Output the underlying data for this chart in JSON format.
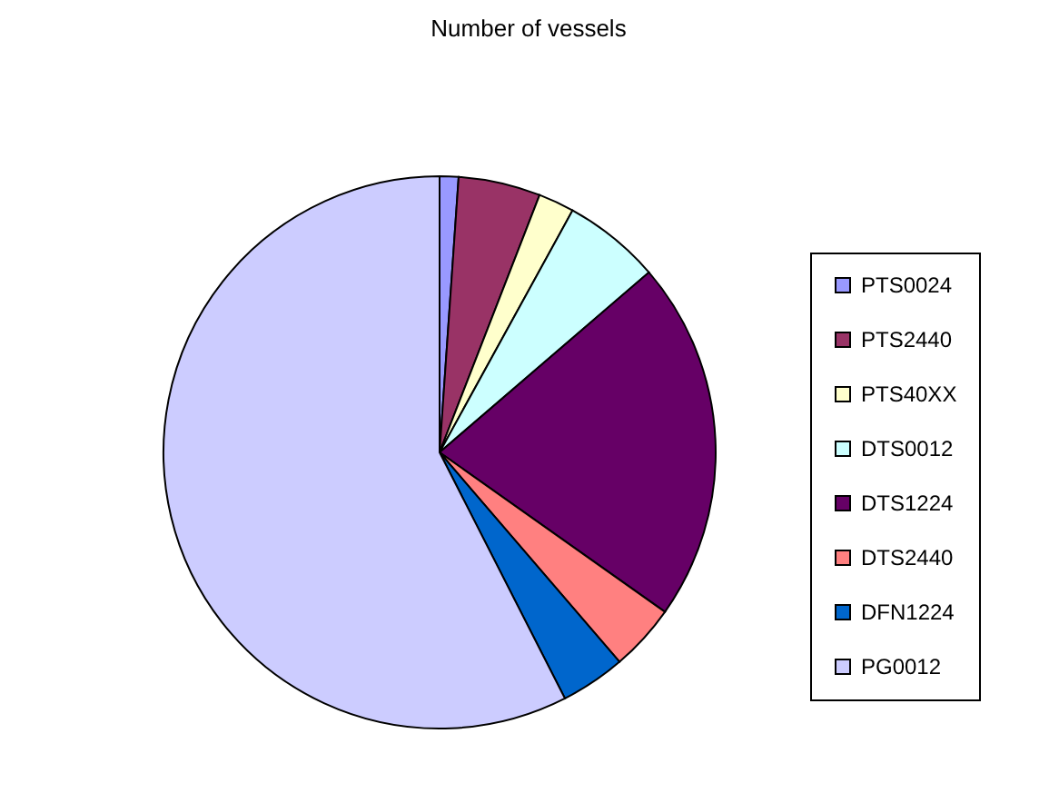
{
  "chart_data": {
    "type": "pie",
    "title": "Number of vessels",
    "categories": [
      "PTS0024",
      "PTS2440",
      "PTS40XX",
      "DTS0012",
      "DTS1224",
      "DTS2440",
      "DFN1224",
      "PG0012"
    ],
    "values": [
      1.1,
      4.8,
      2.1,
      5.7,
      21.1,
      3.9,
      3.8,
      57.5
    ],
    "colors": [
      "#9999ff",
      "#993366",
      "#ffffcc",
      "#ccffff",
      "#660066",
      "#ff8080",
      "#0066cc",
      "#ccccff"
    ],
    "legend": "right"
  }
}
